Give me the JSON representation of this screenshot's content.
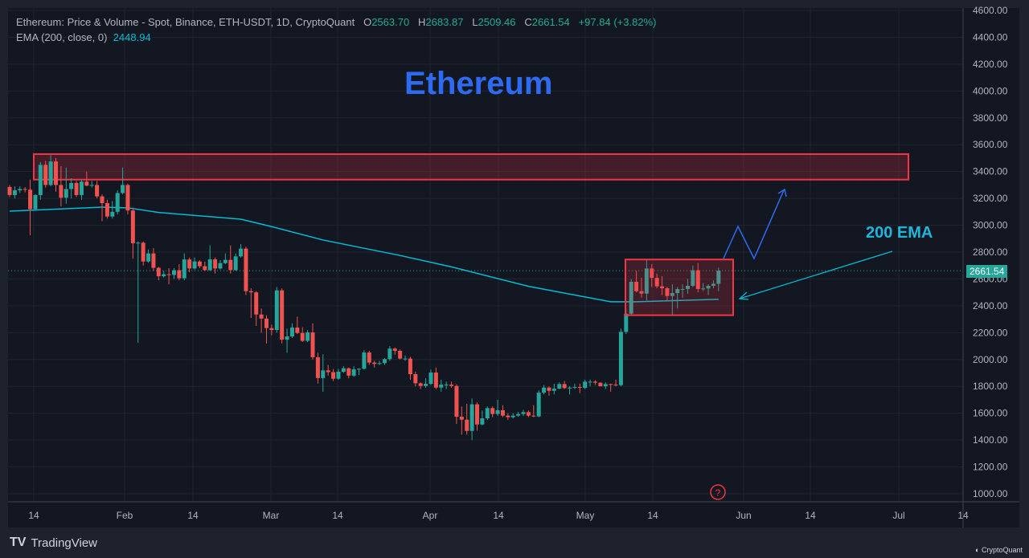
{
  "header": {
    "title": "Ethereum: Price & Volume - Spot, Binance, ETH-USDT, 1D, CryptoQuant",
    "o_label": "O",
    "o": "2563.70",
    "h_label": "H",
    "h": "2683.87",
    "l_label": "L",
    "l": "2509.46",
    "c_label": "C",
    "c": "2661.54",
    "change": "+97.84 (+3.82%)",
    "ema_label": "EMA (200, close, 0)",
    "ema_value": "2448.94"
  },
  "annotations": {
    "title": "Ethereum",
    "ema_label": "200 EMA",
    "help_icon": "question-circle-icon"
  },
  "last_price_tag": "2661.54",
  "footer": {
    "brand": "TradingView",
    "source": "CryptoQuant"
  },
  "colors": {
    "up": "#26a69a",
    "down": "#ef5350",
    "ema": "#00bcd4",
    "zone": "#f23645",
    "title": "#2f6bf0",
    "bg": "#131722"
  },
  "chart_data": {
    "type": "candlestick",
    "title": "Ethereum: Price & Volume - Spot, Binance, ETH-USDT, 1D, CryptoQuant",
    "ylim": [
      1000,
      4600
    ],
    "y_ticks": [
      "4600.00",
      "4400.00",
      "4200.00",
      "4000.00",
      "3800.00",
      "3600.00",
      "3400.00",
      "3200.00",
      "3000.00",
      "2800.00",
      "2600.00",
      "2400.00",
      "2200.00",
      "2000.00",
      "1800.00",
      "1600.00",
      "1400.00",
      "1200.00",
      "1000.00"
    ],
    "x_ticks": [
      "14",
      "Feb",
      "14",
      "Mar",
      "14",
      "Apr",
      "14",
      "May",
      "14",
      "Jun",
      "14",
      "Jul",
      "14"
    ],
    "grid": true,
    "candles_ohlc": [
      [
        3285,
        3300,
        3210,
        3225
      ],
      [
        3225,
        3290,
        3200,
        3260
      ],
      [
        3260,
        3290,
        3240,
        3270
      ],
      [
        3270,
        3285,
        3245,
        3265
      ],
      [
        3265,
        3340,
        2925,
        3120
      ],
      [
        3120,
        3230,
        3110,
        3225
      ],
      [
        3225,
        3470,
        3190,
        3450
      ],
      [
        3450,
        3480,
        3280,
        3300
      ],
      [
        3300,
        3520,
        3290,
        3475
      ],
      [
        3475,
        3500,
        3250,
        3300
      ],
      [
        3300,
        3440,
        3140,
        3205
      ],
      [
        3205,
        3430,
        3160,
        3270
      ],
      [
        3270,
        3350,
        3200,
        3315
      ],
      [
        3315,
        3330,
        3210,
        3225
      ],
      [
        3225,
        3340,
        3190,
        3325
      ],
      [
        3325,
        3400,
        3290,
        3295
      ],
      [
        3295,
        3330,
        3280,
        3300
      ],
      [
        3300,
        3330,
        3200,
        3215
      ],
      [
        3215,
        3230,
        3030,
        3165
      ],
      [
        3165,
        3190,
        3050,
        3065
      ],
      [
        3065,
        3180,
        3050,
        3100
      ],
      [
        3100,
        3260,
        3080,
        3240
      ],
      [
        3240,
        3430,
        3230,
        3300
      ],
      [
        3300,
        3310,
        3080,
        3110
      ],
      [
        3110,
        3130,
        2750,
        2866
      ],
      [
        2866,
        2880,
        2124,
        2870
      ],
      [
        2870,
        2880,
        2700,
        2730
      ],
      [
        2730,
        2820,
        2720,
        2790
      ],
      [
        2790,
        2830,
        2660,
        2683
      ],
      [
        2683,
        2690,
        2590,
        2620
      ],
      [
        2620,
        2660,
        2610,
        2635
      ],
      [
        2635,
        2680,
        2560,
        2630
      ],
      [
        2630,
        2680,
        2600,
        2665
      ],
      [
        2665,
        2710,
        2590,
        2605
      ],
      [
        2605,
        2790,
        2590,
        2745
      ],
      [
        2745,
        2760,
        2650,
        2678
      ],
      [
        2678,
        2760,
        2670,
        2730
      ],
      [
        2730,
        2740,
        2680,
        2695
      ],
      [
        2695,
        2730,
        2660,
        2666
      ],
      [
        2666,
        2850,
        2660,
        2746
      ],
      [
        2746,
        2760,
        2640,
        2678
      ],
      [
        2678,
        2740,
        2670,
        2718
      ],
      [
        2718,
        2790,
        2710,
        2742
      ],
      [
        2742,
        2850,
        2640,
        2666
      ],
      [
        2666,
        2790,
        2660,
        2768
      ],
      [
        2768,
        2860,
        2760,
        2826
      ],
      [
        2826,
        2840,
        2480,
        2509
      ],
      [
        2509,
        2530,
        2310,
        2500
      ],
      [
        2500,
        2510,
        2250,
        2335
      ],
      [
        2335,
        2380,
        2200,
        2305
      ],
      [
        2305,
        2330,
        2120,
        2234
      ],
      [
        2234,
        2260,
        2180,
        2220
      ],
      [
        2220,
        2540,
        2200,
        2515
      ],
      [
        2515,
        2530,
        2120,
        2148
      ],
      [
        2148,
        2230,
        2050,
        2172
      ],
      [
        2172,
        2270,
        2160,
        2238
      ],
      [
        2238,
        2320,
        2190,
        2198
      ],
      [
        2198,
        2240,
        2130,
        2139
      ],
      [
        2139,
        2220,
        2130,
        2202
      ],
      [
        2202,
        2270,
        2000,
        2017
      ],
      [
        2017,
        2050,
        1820,
        1862
      ],
      [
        1862,
        2040,
        1760,
        1919
      ],
      [
        1919,
        1960,
        1880,
        1906
      ],
      [
        1906,
        1930,
        1840,
        1857
      ],
      [
        1857,
        1930,
        1850,
        1909
      ],
      [
        1909,
        1950,
        1900,
        1935
      ],
      [
        1935,
        1940,
        1860,
        1880
      ],
      [
        1880,
        1950,
        1870,
        1927
      ],
      [
        1927,
        1935,
        1885,
        1931
      ],
      [
        1931,
        2070,
        1925,
        2052
      ],
      [
        2052,
        2065,
        1960,
        1977
      ],
      [
        1977,
        1990,
        1940,
        1967
      ],
      [
        1967,
        1990,
        1960,
        1973
      ],
      [
        1973,
        2010,
        1960,
        2003
      ],
      [
        2003,
        2100,
        1990,
        2081
      ],
      [
        2081,
        2090,
        2035,
        2065
      ],
      [
        2065,
        2075,
        2000,
        2007
      ],
      [
        2007,
        2030,
        1990,
        2007
      ],
      [
        2007,
        2020,
        1850,
        1891
      ],
      [
        1891,
        1910,
        1800,
        1823
      ],
      [
        1823,
        1830,
        1780,
        1803
      ],
      [
        1803,
        1860,
        1790,
        1819
      ],
      [
        1819,
        1925,
        1810,
        1903
      ],
      [
        1903,
        1940,
        1780,
        1791
      ],
      [
        1791,
        1850,
        1760,
        1813
      ],
      [
        1813,
        1835,
        1780,
        1813
      ],
      [
        1813,
        1835,
        1790,
        1803
      ],
      [
        1803,
        1815,
        1520,
        1574
      ],
      [
        1574,
        1650,
        1440,
        1552
      ],
      [
        1552,
        1670,
        1440,
        1468
      ],
      [
        1468,
        1710,
        1400,
        1666
      ],
      [
        1666,
        1680,
        1470,
        1516
      ],
      [
        1516,
        1620,
        1510,
        1562
      ],
      [
        1562,
        1650,
        1550,
        1638
      ],
      [
        1638,
        1650,
        1570,
        1594
      ],
      [
        1594,
        1700,
        1580,
        1622
      ],
      [
        1622,
        1660,
        1570,
        1582
      ],
      [
        1582,
        1600,
        1550,
        1570
      ],
      [
        1570,
        1600,
        1560,
        1582
      ],
      [
        1582,
        1610,
        1575,
        1594
      ],
      [
        1594,
        1625,
        1580,
        1608
      ],
      [
        1608,
        1620,
        1570,
        1582
      ],
      [
        1582,
        1660,
        1570,
        1576
      ],
      [
        1576,
        1770,
        1570,
        1753
      ],
      [
        1753,
        1810,
        1740,
        1791
      ],
      [
        1791,
        1800,
        1730,
        1767
      ],
      [
        1767,
        1820,
        1740,
        1783
      ],
      [
        1783,
        1830,
        1780,
        1817
      ],
      [
        1817,
        1840,
        1780,
        1787
      ],
      [
        1787,
        1800,
        1740,
        1791
      ],
      [
        1791,
        1820,
        1780,
        1795
      ],
      [
        1795,
        1820,
        1750,
        1789
      ],
      [
        1789,
        1850,
        1780,
        1835
      ],
      [
        1835,
        1850,
        1800,
        1835
      ],
      [
        1835,
        1845,
        1810,
        1827
      ],
      [
        1827,
        1830,
        1800,
        1801
      ],
      [
        1801,
        1830,
        1780,
        1817
      ],
      [
        1817,
        1820,
        1760,
        1813
      ],
      [
        1813,
        1850,
        1800,
        1809
      ],
      [
        1809,
        2230,
        1800,
        2206
      ],
      [
        2206,
        2380,
        2190,
        2341
      ],
      [
        2341,
        2600,
        2330,
        2579
      ],
      [
        2579,
        2660,
        2500,
        2509
      ],
      [
        2509,
        2610,
        2460,
        2491
      ],
      [
        2491,
        2740,
        2440,
        2678
      ],
      [
        2678,
        2710,
        2540,
        2608
      ],
      [
        2608,
        2640,
        2530,
        2545
      ],
      [
        2545,
        2620,
        2480,
        2531
      ],
      [
        2531,
        2540,
        2440,
        2473
      ],
      [
        2473,
        2560,
        2330,
        2495
      ],
      [
        2495,
        2540,
        2380,
        2525
      ],
      [
        2525,
        2560,
        2460,
        2525
      ],
      [
        2525,
        2600,
        2490,
        2549
      ],
      [
        2549,
        2700,
        2540,
        2665
      ],
      [
        2665,
        2720,
        2500,
        2525
      ],
      [
        2525,
        2570,
        2510,
        2529
      ],
      [
        2529,
        2560,
        2480,
        2549
      ],
      [
        2549,
        2590,
        2530,
        2564
      ],
      [
        2563.7,
        2683.87,
        2509.46,
        2661.54
      ]
    ],
    "ema_200_points": [
      [
        0,
        3105
      ],
      [
        18,
        3135
      ],
      [
        23,
        3130
      ],
      [
        29,
        3095
      ],
      [
        45,
        3045
      ],
      [
        51,
        2990
      ],
      [
        61,
        2890
      ],
      [
        76,
        2775
      ],
      [
        86,
        2690
      ],
      [
        101,
        2545
      ],
      [
        117,
        2430
      ],
      [
        122,
        2430
      ],
      [
        138,
        2448.94
      ]
    ],
    "zones": [
      {
        "name": "resistance",
        "price_range": [
          3340,
          3530
        ]
      },
      {
        "name": "consolidation",
        "price_range": [
          2330,
          2745
        ]
      }
    ],
    "last_price": 2661.54
  }
}
